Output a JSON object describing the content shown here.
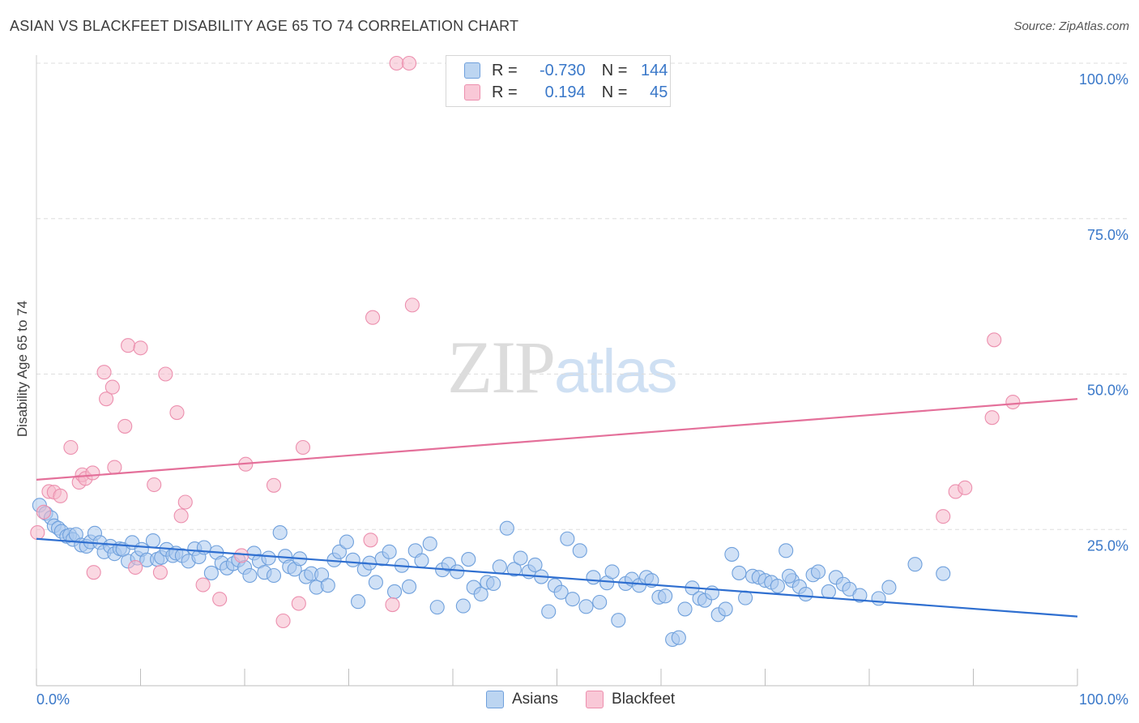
{
  "header": {
    "title": "ASIAN VS BLACKFEET DISABILITY AGE 65 TO 74 CORRELATION CHART",
    "source": "Source: ZipAtlas.com"
  },
  "watermark": {
    "zip": "ZIP",
    "atlas": "atlas"
  },
  "legend_top": {
    "rows": [
      {
        "r_label": "R =",
        "r_value": "-0.730",
        "n_label": "N =",
        "n_value": "144",
        "color": "#a9c9ee"
      },
      {
        "r_label": "R =",
        "r_value": "0.194",
        "n_label": "N =",
        "n_value": "45",
        "color": "#f5b8cb"
      }
    ]
  },
  "legend_bottom": {
    "items": [
      {
        "label": "Asians",
        "color": "#a9c9ee"
      },
      {
        "label": "Blackfeet",
        "color": "#f5b8cb"
      }
    ]
  },
  "colors": {
    "asian_fill": "#a9c9ee",
    "asian_stroke": "#6fa0dc",
    "asian_line": "#2f6fd0",
    "blackfeet_fill": "#f5b8cb",
    "blackfeet_stroke": "#ec8fae",
    "blackfeet_line": "#e4709a",
    "tick_label": "#3a78c9",
    "grid": "#dedede"
  },
  "chart_data": {
    "type": "scatter",
    "title": "ASIAN VS BLACKFEET DISABILITY AGE 65 TO 74 CORRELATION CHART",
    "xlabel": "",
    "ylabel": "Disability Age 65 to 74",
    "xlim": [
      0,
      100
    ],
    "ylim": [
      0,
      100
    ],
    "x_tick_labels": [
      "0.0%",
      "100.0%"
    ],
    "y_ticks": [
      25,
      50,
      75,
      100
    ],
    "y_tick_labels": [
      "25.0%",
      "50.0%",
      "75.0%",
      "100.0%"
    ],
    "grid": true,
    "legend_position": "top-center",
    "series": [
      {
        "name": "Asians",
        "trend": {
          "x": [
            0,
            100
          ],
          "y": [
            23.5,
            11.0
          ]
        },
        "x": [
          0.3,
          0.9,
          1.4,
          1.7,
          2.1,
          2.4,
          2.9,
          3.2,
          3.5,
          3.8,
          4.3,
          4.8,
          5.2,
          5.6,
          6.1,
          6.5,
          7.1,
          7.5,
          8.0,
          8.3,
          8.8,
          9.2,
          9.7,
          10.1,
          10.6,
          11.2,
          11.6,
          12.0,
          12.5,
          13.1,
          13.4,
          14.0,
          14.6,
          15.2,
          15.6,
          16.1,
          16.8,
          17.3,
          17.8,
          18.3,
          18.9,
          19.4,
          20.0,
          20.5,
          20.9,
          21.4,
          21.9,
          22.3,
          22.8,
          23.4,
          23.9,
          24.3,
          24.8,
          25.3,
          25.9,
          26.4,
          26.9,
          27.4,
          28.0,
          28.6,
          29.1,
          29.8,
          30.4,
          30.9,
          31.5,
          32.0,
          32.6,
          33.2,
          33.9,
          34.4,
          35.1,
          35.8,
          36.4,
          37.0,
          37.8,
          38.5,
          39.0,
          39.6,
          40.4,
          41.0,
          41.5,
          42.0,
          42.7,
          43.3,
          43.9,
          44.5,
          45.2,
          45.9,
          46.5,
          47.3,
          47.9,
          48.5,
          49.2,
          49.8,
          50.4,
          51.0,
          51.5,
          52.2,
          52.8,
          53.5,
          54.1,
          54.8,
          55.3,
          55.9,
          56.6,
          57.2,
          57.9,
          58.6,
          59.1,
          59.8,
          60.4,
          61.1,
          61.7,
          62.3,
          63.0,
          63.7,
          64.2,
          64.9,
          65.5,
          66.2,
          66.8,
          67.5,
          68.1,
          68.8,
          69.4,
          70.0,
          70.6,
          71.2,
          72.0,
          72.6,
          73.3,
          73.9,
          74.6,
          75.1,
          76.1,
          76.8,
          77.5,
          78.1,
          79.1,
          80.9,
          81.9,
          84.4,
          87.1,
          72.3
        ],
        "y": [
          28.9,
          27.6,
          26.9,
          25.6,
          25.2,
          24.7,
          23.9,
          24.1,
          23.4,
          24.2,
          22.5,
          22.3,
          23.0,
          24.4,
          22.9,
          21.4,
          22.3,
          21.1,
          21.9,
          21.8,
          19.9,
          22.9,
          20.4,
          21.8,
          20.1,
          23.2,
          20.2,
          20.5,
          21.8,
          20.8,
          21.2,
          20.8,
          19.9,
          21.9,
          20.6,
          22.1,
          18.0,
          21.3,
          19.6,
          18.8,
          19.5,
          20.1,
          18.9,
          17.6,
          21.2,
          19.9,
          18.1,
          20.4,
          17.6,
          24.5,
          20.7,
          19.0,
          18.6,
          20.3,
          17.4,
          17.9,
          15.7,
          17.7,
          16.0,
          20.1,
          21.4,
          23.0,
          20.1,
          13.4,
          18.6,
          19.6,
          16.5,
          20.3,
          21.4,
          15.0,
          19.2,
          15.8,
          21.6,
          20.0,
          22.7,
          12.5,
          18.5,
          19.4,
          18.2,
          12.7,
          20.2,
          15.7,
          14.6,
          16.5,
          16.3,
          19.0,
          25.2,
          18.6,
          20.4,
          18.2,
          19.3,
          17.4,
          11.8,
          16.0,
          14.9,
          23.5,
          13.8,
          21.6,
          12.6,
          17.3,
          13.3,
          16.4,
          18.2,
          10.4,
          16.3,
          17.0,
          16.0,
          17.3,
          16.8,
          14.1,
          14.3,
          7.3,
          7.6,
          12.2,
          15.6,
          13.9,
          13.6,
          14.8,
          11.3,
          12.2,
          21.0,
          18.0,
          14.0,
          17.5,
          17.3,
          16.8,
          16.5,
          15.9,
          21.6,
          16.8,
          15.8,
          14.6,
          17.7,
          18.2,
          15.0,
          17.3,
          16.2,
          15.4,
          14.4,
          13.9,
          15.7,
          19.4,
          17.9,
          17.5
        ]
      },
      {
        "name": "Blackfeet",
        "trend": {
          "x": [
            0,
            100
          ],
          "y": [
            33.0,
            46.0
          ]
        },
        "x": [
          0.1,
          0.7,
          1.2,
          1.7,
          2.3,
          3.3,
          4.1,
          4.4,
          4.7,
          5.4,
          5.5,
          6.5,
          6.7,
          7.3,
          7.5,
          8.5,
          8.8,
          9.5,
          10.0,
          11.3,
          11.9,
          12.4,
          13.5,
          13.9,
          14.3,
          16.0,
          17.6,
          19.7,
          20.1,
          22.8,
          23.7,
          25.2,
          25.6,
          32.1,
          32.3,
          34.2,
          34.6,
          35.8,
          36.1,
          87.1,
          88.3,
          89.2,
          91.8,
          92.0,
          93.8
        ],
        "y": [
          24.5,
          27.8,
          31.1,
          31.0,
          30.4,
          38.2,
          32.6,
          33.8,
          33.2,
          34.1,
          18.1,
          50.3,
          46.0,
          47.9,
          35.0,
          41.6,
          54.6,
          18.9,
          54.2,
          32.2,
          18.1,
          50.0,
          43.8,
          27.2,
          29.4,
          16.1,
          13.8,
          20.8,
          35.5,
          32.1,
          10.3,
          13.1,
          38.2,
          23.3,
          59.1,
          12.9,
          100.0,
          100.0,
          61.1,
          27.1,
          31.1,
          31.7,
          43.0,
          55.5,
          45.5
        ]
      }
    ]
  }
}
